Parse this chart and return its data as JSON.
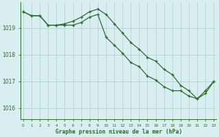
{
  "line1_x": [
    0,
    1,
    2,
    3,
    4,
    5,
    6,
    7,
    8,
    9,
    10,
    11,
    12,
    13,
    14,
    15,
    16,
    17,
    18,
    19,
    20,
    21,
    22,
    23
  ],
  "line1_y": [
    1019.6,
    1019.45,
    1019.45,
    1019.1,
    1019.1,
    1019.15,
    1019.25,
    1019.4,
    1019.6,
    1019.7,
    1019.5,
    1019.15,
    1018.8,
    1018.45,
    1018.2,
    1017.9,
    1017.75,
    1017.45,
    1017.25,
    1016.85,
    1016.65,
    1016.35,
    1016.65,
    1017.0
  ],
  "line2_x": [
    0,
    1,
    2,
    3,
    4,
    5,
    6,
    7,
    8,
    9,
    10,
    11,
    12,
    13,
    14,
    15,
    16,
    17,
    18,
    19,
    20,
    21,
    22,
    23
  ],
  "line2_y": [
    1019.6,
    1019.45,
    1019.45,
    1019.1,
    1019.1,
    1019.1,
    1019.1,
    1019.2,
    1019.4,
    1019.5,
    1018.65,
    1018.35,
    1018.05,
    1017.7,
    1017.55,
    1017.2,
    1017.05,
    1016.8,
    1016.65,
    1016.65,
    1016.45,
    1016.35,
    1016.55,
    1017.0
  ],
  "line_color": "#2d6a2d",
  "marker": "+",
  "markersize": 3.5,
  "markeredgewidth": 0.9,
  "linewidth": 0.9,
  "bg_color": "#d8eef0",
  "grid_color": "#aacece",
  "xlabel": "Graphe pression niveau de la mer (hPa)",
  "xlabel_color": "#2d6a2d",
  "tick_color": "#2d6a2d",
  "yticks": [
    1016,
    1017,
    1018,
    1019
  ],
  "xtick_labels": [
    "0",
    "1",
    "2",
    "3",
    "4",
    "5",
    "6",
    "7",
    "8",
    "9",
    "10",
    "11",
    "12",
    "13",
    "14",
    "15",
    "16",
    "17",
    "18",
    "19",
    "20",
    "21",
    "22",
    "23"
  ],
  "xticks": [
    0,
    1,
    2,
    3,
    4,
    5,
    6,
    7,
    8,
    9,
    10,
    11,
    12,
    13,
    14,
    15,
    16,
    17,
    18,
    19,
    20,
    21,
    22,
    23
  ],
  "ylim": [
    1015.6,
    1019.95
  ],
  "xlim": [
    -0.3,
    23.3
  ]
}
